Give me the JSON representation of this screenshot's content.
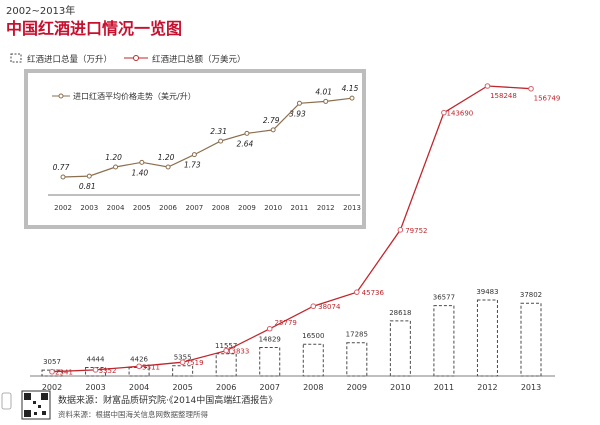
{
  "header": {
    "year_range": "2002~2013年",
    "title": "中国红酒进口情况一览图"
  },
  "legend": {
    "volume_label": "红酒进口总量（万升）",
    "value_label": "红酒进口总额（万美元）"
  },
  "colors": {
    "title_red": "#c8102e",
    "value_line": "#c0272d",
    "value_marker": "#d4616a",
    "bar_border": "#4a4a4a",
    "inset_line": "#8b6f4e",
    "inset_border": "#bdbdbd",
    "text_dark": "#333333"
  },
  "chart_data": [
    {
      "type": "bar+line",
      "name": "main",
      "categories": [
        "2002",
        "2003",
        "2004",
        "2005",
        "2006",
        "2007",
        "2008",
        "2009",
        "2010",
        "2011",
        "2012",
        "2013"
      ],
      "series": [
        {
          "name": "红酒进口总量（万升）",
          "type": "bar",
          "style": "dashed",
          "values": [
            3057,
            4444,
            4426,
            5355,
            11557,
            14829,
            16500,
            17285,
            28618,
            36577,
            39483,
            37802
          ],
          "labels": [
            "3057",
            "4444",
            "4426",
            "5355",
            "11557",
            "14829",
            "16500",
            "17285",
            "28618",
            "36577",
            "39483",
            "37802"
          ]
        },
        {
          "name": "红酒进口总额（万美元）",
          "type": "line",
          "values": [
            2341,
            3352,
            5311,
            7519,
            13833,
            25779,
            38074,
            45736,
            79752,
            143690,
            158248,
            156749
          ],
          "labels": [
            "2341",
            "3352",
            "5311",
            "7519",
            "13833",
            "25779",
            "38074",
            "45736",
            "79752",
            "143690",
            "158248",
            "156749"
          ]
        }
      ]
    },
    {
      "type": "line",
      "name": "inset",
      "title": "进口红酒平均价格走势（美元/升）",
      "x": [
        "2002",
        "2003",
        "2004",
        "2005",
        "2006",
        "2007",
        "2008",
        "2009",
        "2010",
        "2011",
        "2012",
        "2013"
      ],
      "values": [
        0.77,
        0.81,
        1.2,
        1.4,
        1.2,
        1.73,
        2.31,
        2.64,
        2.79,
        3.93,
        4.01,
        4.15
      ],
      "labels": [
        "0.77",
        "0.81",
        "1.20",
        "1.40",
        "1.20",
        "1.73",
        "2.31",
        "2.64",
        "2.79",
        "3.93",
        "4.01",
        "4.15"
      ],
      "ylim": [
        0,
        4.5
      ]
    }
  ],
  "footer": {
    "source1": "数据来源：财富品质研究院·《2014中国高端红酒报告》",
    "source2": "资料来源：根据中国海关信息网数据整理所得"
  }
}
